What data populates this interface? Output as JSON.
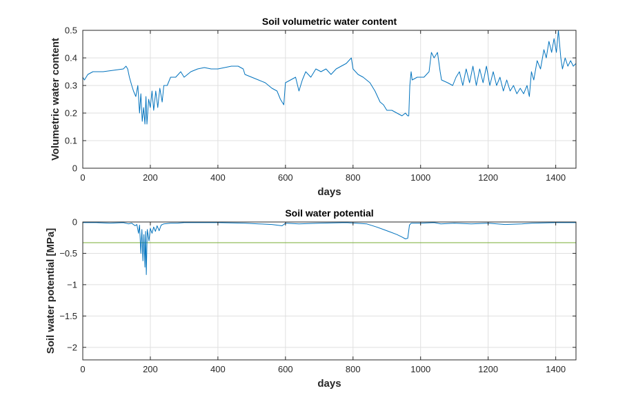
{
  "chart_data": [
    {
      "type": "line",
      "title": "Soil volumetric water content",
      "xlabel": "days",
      "ylabel": "Volumetric water content",
      "xlim": [
        0,
        1460
      ],
      "ylim": [
        0,
        0.5
      ],
      "xticks": [
        0,
        200,
        400,
        600,
        800,
        1000,
        1200,
        1400
      ],
      "yticks": [
        0,
        0.1,
        0.2,
        0.3,
        0.4,
        0.5
      ],
      "grid": true,
      "colors": {
        "series": "#0072BD"
      },
      "series": [
        {
          "values": [
            [
              0,
              0.33
            ],
            [
              5,
              0.32
            ],
            [
              15,
              0.34
            ],
            [
              30,
              0.35
            ],
            [
              60,
              0.35
            ],
            [
              90,
              0.355
            ],
            [
              120,
              0.36
            ],
            [
              128,
              0.37
            ],
            [
              133,
              0.36
            ],
            [
              138,
              0.33
            ],
            [
              145,
              0.3
            ],
            [
              150,
              0.28
            ],
            [
              157,
              0.26
            ],
            [
              163,
              0.3
            ],
            [
              168,
              0.2
            ],
            [
              172,
              0.27
            ],
            [
              176,
              0.17
            ],
            [
              180,
              0.22
            ],
            [
              184,
              0.16
            ],
            [
              187,
              0.26
            ],
            [
              190,
              0.16
            ],
            [
              195,
              0.25
            ],
            [
              200,
              0.22
            ],
            [
              205,
              0.28
            ],
            [
              210,
              0.21
            ],
            [
              216,
              0.28
            ],
            [
              222,
              0.22
            ],
            [
              228,
              0.29
            ],
            [
              235,
              0.24
            ],
            [
              240,
              0.3
            ],
            [
              250,
              0.3
            ],
            [
              260,
              0.33
            ],
            [
              275,
              0.33
            ],
            [
              290,
              0.35
            ],
            [
              300,
              0.33
            ],
            [
              320,
              0.35
            ],
            [
              340,
              0.36
            ],
            [
              360,
              0.365
            ],
            [
              380,
              0.36
            ],
            [
              400,
              0.36
            ],
            [
              420,
              0.365
            ],
            [
              440,
              0.37
            ],
            [
              460,
              0.37
            ],
            [
              475,
              0.36
            ],
            [
              480,
              0.34
            ],
            [
              500,
              0.33
            ],
            [
              520,
              0.32
            ],
            [
              540,
              0.31
            ],
            [
              560,
              0.29
            ],
            [
              575,
              0.28
            ],
            [
              585,
              0.25
            ],
            [
              595,
              0.23
            ],
            [
              600,
              0.31
            ],
            [
              615,
              0.32
            ],
            [
              630,
              0.33
            ],
            [
              640,
              0.28
            ],
            [
              650,
              0.32
            ],
            [
              660,
              0.35
            ],
            [
              675,
              0.33
            ],
            [
              690,
              0.36
            ],
            [
              705,
              0.35
            ],
            [
              720,
              0.36
            ],
            [
              735,
              0.34
            ],
            [
              750,
              0.36
            ],
            [
              765,
              0.37
            ],
            [
              780,
              0.38
            ],
            [
              795,
              0.4
            ],
            [
              800,
              0.36
            ],
            [
              815,
              0.34
            ],
            [
              830,
              0.33
            ],
            [
              850,
              0.31
            ],
            [
              865,
              0.28
            ],
            [
              880,
              0.24
            ],
            [
              890,
              0.23
            ],
            [
              900,
              0.21
            ],
            [
              915,
              0.21
            ],
            [
              930,
              0.2
            ],
            [
              945,
              0.19
            ],
            [
              955,
              0.2
            ],
            [
              962,
              0.19
            ],
            [
              965,
              0.19
            ],
            [
              968,
              0.3
            ],
            [
              972,
              0.35
            ],
            [
              975,
              0.32
            ],
            [
              990,
              0.33
            ],
            [
              1010,
              0.33
            ],
            [
              1025,
              0.35
            ],
            [
              1032,
              0.42
            ],
            [
              1040,
              0.4
            ],
            [
              1050,
              0.42
            ],
            [
              1058,
              0.35
            ],
            [
              1062,
              0.32
            ],
            [
              1080,
              0.31
            ],
            [
              1095,
              0.3
            ],
            [
              1105,
              0.33
            ],
            [
              1115,
              0.35
            ],
            [
              1125,
              0.3
            ],
            [
              1135,
              0.36
            ],
            [
              1145,
              0.31
            ],
            [
              1155,
              0.37
            ],
            [
              1165,
              0.3
            ],
            [
              1175,
              0.36
            ],
            [
              1185,
              0.31
            ],
            [
              1195,
              0.37
            ],
            [
              1205,
              0.3
            ],
            [
              1215,
              0.35
            ],
            [
              1225,
              0.3
            ],
            [
              1235,
              0.33
            ],
            [
              1245,
              0.28
            ],
            [
              1255,
              0.32
            ],
            [
              1265,
              0.28
            ],
            [
              1275,
              0.3
            ],
            [
              1285,
              0.27
            ],
            [
              1295,
              0.29
            ],
            [
              1305,
              0.27
            ],
            [
              1315,
              0.3
            ],
            [
              1322,
              0.26
            ],
            [
              1328,
              0.35
            ],
            [
              1335,
              0.32
            ],
            [
              1345,
              0.39
            ],
            [
              1355,
              0.36
            ],
            [
              1365,
              0.43
            ],
            [
              1372,
              0.4
            ],
            [
              1380,
              0.46
            ],
            [
              1388,
              0.42
            ],
            [
              1395,
              0.47
            ],
            [
              1402,
              0.42
            ],
            [
              1408,
              0.5
            ],
            [
              1415,
              0.4
            ],
            [
              1420,
              0.36
            ],
            [
              1428,
              0.4
            ],
            [
              1436,
              0.37
            ],
            [
              1444,
              0.39
            ],
            [
              1452,
              0.37
            ],
            [
              1460,
              0.38
            ]
          ]
        }
      ]
    },
    {
      "type": "line",
      "title": "Soil water potential",
      "xlabel": "days",
      "ylabel": "Soil water potential [MPa]",
      "xlim": [
        0,
        1460
      ],
      "ylim": [
        -2.2,
        0
      ],
      "xticks": [
        0,
        200,
        400,
        600,
        800,
        1000,
        1200,
        1400
      ],
      "yticks": [
        -2,
        -1.5,
        -1,
        -0.5,
        0
      ],
      "ytick_labels": [
        "−2",
        "−1.5",
        "−1",
        "−0.5",
        "0"
      ],
      "grid": true,
      "colors": {
        "series": "#0072BD",
        "reference": "#77AC30"
      },
      "reference_line": {
        "y": -0.33
      },
      "series": [
        {
          "values": [
            [
              0,
              -0.01
            ],
            [
              40,
              -0.01
            ],
            [
              80,
              -0.02
            ],
            [
              120,
              -0.01
            ],
            [
              135,
              -0.03
            ],
            [
              145,
              -0.02
            ],
            [
              155,
              -0.06
            ],
            [
              160,
              -0.04
            ],
            [
              165,
              -0.18
            ],
            [
              168,
              -0.05
            ],
            [
              172,
              -0.5
            ],
            [
              175,
              -0.12
            ],
            [
              178,
              -0.62
            ],
            [
              181,
              -0.2
            ],
            [
              184,
              -0.72
            ],
            [
              186,
              -0.15
            ],
            [
              188,
              -0.84
            ],
            [
              191,
              -0.12
            ],
            [
              196,
              -0.3
            ],
            [
              200,
              -0.1
            ],
            [
              205,
              -0.18
            ],
            [
              210,
              -0.08
            ],
            [
              215,
              -0.15
            ],
            [
              220,
              -0.06
            ],
            [
              226,
              -0.14
            ],
            [
              232,
              -0.05
            ],
            [
              240,
              -0.03
            ],
            [
              260,
              -0.02
            ],
            [
              280,
              -0.02
            ],
            [
              300,
              -0.01
            ],
            [
              400,
              -0.01
            ],
            [
              480,
              -0.02
            ],
            [
              520,
              -0.03
            ],
            [
              560,
              -0.04
            ],
            [
              590,
              -0.06
            ],
            [
              600,
              -0.02
            ],
            [
              640,
              -0.03
            ],
            [
              700,
              -0.02
            ],
            [
              780,
              -0.01
            ],
            [
              840,
              -0.03
            ],
            [
              870,
              -0.08
            ],
            [
              890,
              -0.12
            ],
            [
              910,
              -0.16
            ],
            [
              930,
              -0.2
            ],
            [
              945,
              -0.24
            ],
            [
              955,
              -0.27
            ],
            [
              962,
              -0.26
            ],
            [
              967,
              -0.05
            ],
            [
              972,
              -0.02
            ],
            [
              1000,
              -0.02
            ],
            [
              1040,
              -0.01
            ],
            [
              1060,
              -0.03
            ],
            [
              1100,
              -0.02
            ],
            [
              1150,
              -0.03
            ],
            [
              1200,
              -0.02
            ],
            [
              1250,
              -0.04
            ],
            [
              1300,
              -0.03
            ],
            [
              1330,
              -0.02
            ],
            [
              1400,
              -0.01
            ],
            [
              1460,
              -0.01
            ]
          ]
        }
      ]
    }
  ]
}
